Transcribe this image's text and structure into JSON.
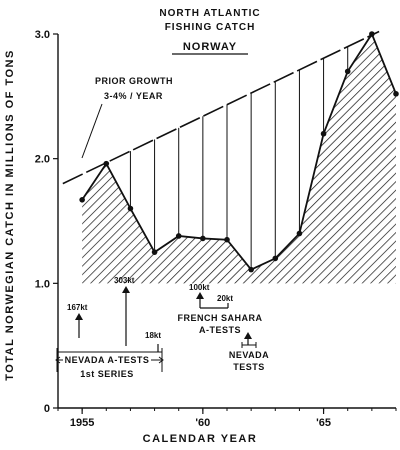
{
  "chart_data": {
    "type": "area",
    "title_lines": [
      "NORTH ATLANTIC",
      "FISHING CATCH"
    ],
    "subtitle": "NORWAY",
    "xlabel": "CALENDAR YEAR",
    "ylabel": "TOTAL NORWEGIAN CATCH IN MILLIONS OF TONS",
    "xlim": [
      1954,
      1968
    ],
    "ylim": [
      0,
      3.0
    ],
    "x_ticks": [
      1955,
      1960,
      1965
    ],
    "x_tick_labels": [
      "1955",
      "'60",
      "'65"
    ],
    "y_ticks": [
      0,
      1.0,
      2.0,
      3.0
    ],
    "y_tick_labels": [
      "0",
      "1.0",
      "2.0",
      "3.0"
    ],
    "series": [
      {
        "x": [
          1955,
          1956,
          1957,
          1958,
          1959,
          1960,
          1961,
          1962,
          1963,
          1964,
          1965,
          1966,
          1967,
          1968
        ],
        "values": [
          1.67,
          1.96,
          1.6,
          1.25,
          1.38,
          1.36,
          1.35,
          1.11,
          1.2,
          1.4,
          2.2,
          2.7,
          3.0,
          2.52
        ]
      },
      {
        "x": [
          1954.2,
          1967.3
        ],
        "values": [
          1.8,
          3.02
        ],
        "style": "dashed-trend"
      }
    ],
    "annotations": {
      "prior_growth_line1": "PRIOR GROWTH",
      "prior_growth_line2": "3-4% / YEAR",
      "test_167": "167kt",
      "test_303": "303kt",
      "test_18": "18kt",
      "test_100": "100kt",
      "test_20": "20kt",
      "nevada_series_line1": "NEVADA A-TESTS",
      "nevada_series_line2": "1st SERIES",
      "french_line1": "FRENCH SAHARA",
      "french_line2": "A-TESTS",
      "nevada_tests_line1": "NEVADA",
      "nevada_tests_line2": "TESTS"
    }
  }
}
